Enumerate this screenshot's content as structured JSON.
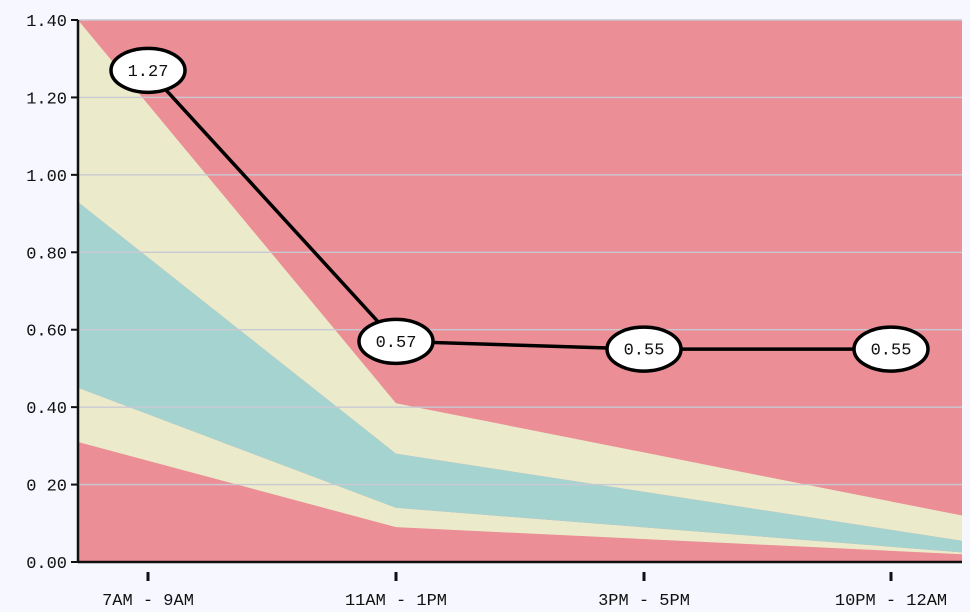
{
  "chart_data": {
    "type": "area",
    "title": "",
    "xlabel": "",
    "ylabel": "",
    "categories": [
      "7AM - 9AM",
      "11AM - 1PM",
      "3PM - 5PM",
      "10PM - 12AM"
    ],
    "ylim": [
      0,
      1.4
    ],
    "y_ticks": [
      "0.00",
      "0 20",
      "0.40",
      "0.60",
      "0.80",
      "1.00",
      "1.20",
      "1.40"
    ],
    "grid": true,
    "band_boundaries": [
      {
        "x": "7AM - 9AM",
        "values": [
          0.31,
          0.45,
          0.93,
          1.4
        ]
      },
      {
        "x": "11AM - 1PM",
        "values": [
          0.09,
          0.14,
          0.28,
          0.41
        ]
      },
      {
        "x": "10PM - 12AM",
        "values": [
          0.02,
          0.025,
          0.055,
          0.12
        ]
      }
    ],
    "band_colors": [
      "#eb8e96",
      "#ebebcb",
      "#a4d3d0",
      "#ebebcb",
      "#eb8e96"
    ],
    "series": [
      {
        "values": [
          1.27,
          0.57,
          0.55,
          0.55
        ],
        "color": "#000000"
      }
    ],
    "data_labels": [
      "1.27",
      "0.57",
      "0.55",
      "0.55"
    ]
  }
}
